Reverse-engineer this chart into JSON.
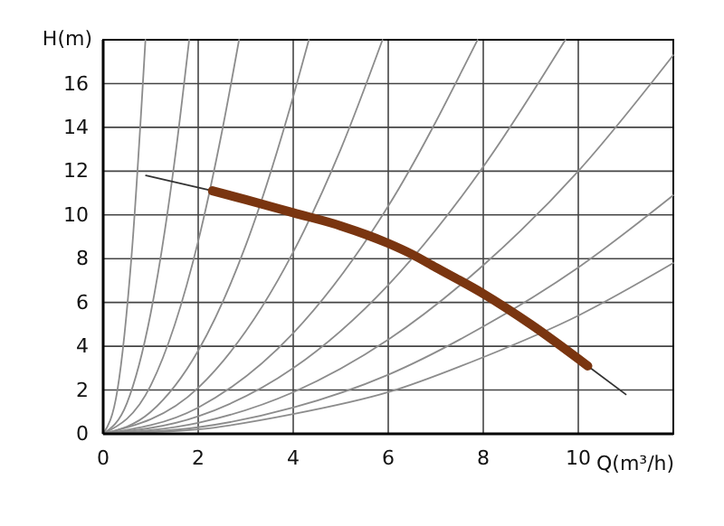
{
  "chart_data": {
    "type": "line",
    "xlabel": "Q(m³/h)",
    "ylabel": "H(m)",
    "xlim": [
      0,
      12
    ],
    "ylim": [
      0,
      18
    ],
    "xticks": [
      0,
      2,
      4,
      6,
      8,
      10
    ],
    "yticks": [
      0,
      2,
      4,
      6,
      8,
      10,
      12,
      14,
      16
    ],
    "grid": true,
    "marker": "none",
    "line_style": "solid",
    "series": [
      {
        "color": "#8c8c8c",
        "x": [
          0,
          0.3,
          0.6,
          0.89
        ],
        "values": [
          0,
          2.0,
          8.2,
          18.0
        ]
      },
      {
        "color": "#8c8c8c",
        "x": [
          0,
          0.5,
          1,
          1.5,
          1.81
        ],
        "values": [
          0,
          1.4,
          5.5,
          12.4,
          18.0
        ]
      },
      {
        "color": "#8c8c8c",
        "x": [
          0,
          1,
          2,
          2.5,
          2.86
        ],
        "values": [
          0,
          2.2,
          8.8,
          13.8,
          18.0
        ]
      },
      {
        "color": "#8c8c8c",
        "x": [
          0,
          1,
          2,
          3,
          4,
          4.33
        ],
        "values": [
          0,
          1.0,
          3.8,
          8.6,
          15.4,
          18.0
        ]
      },
      {
        "color": "#8c8c8c",
        "x": [
          0,
          2,
          4,
          5,
          5.88
        ],
        "values": [
          0,
          2.1,
          8.3,
          13.0,
          18.0
        ]
      },
      {
        "color": "#8c8c8c",
        "x": [
          0,
          2,
          4,
          6,
          7.88
        ],
        "values": [
          0,
          1.2,
          4.6,
          10.4,
          18.0
        ]
      },
      {
        "color": "#8c8c8c",
        "x": [
          0,
          2,
          4,
          6,
          8,
          9.73
        ],
        "values": [
          0,
          0.8,
          3.0,
          6.8,
          12.2,
          18.0
        ]
      },
      {
        "color": "#8c8c8c",
        "x": [
          0,
          2,
          4,
          6,
          8,
          10,
          12
        ],
        "values": [
          0,
          0.5,
          1.9,
          4.3,
          7.7,
          12.0,
          17.3
        ]
      },
      {
        "color": "#8c8c8c",
        "x": [
          0,
          2,
          4,
          6,
          8,
          10,
          12
        ],
        "values": [
          0,
          0.3,
          1.2,
          2.7,
          4.9,
          7.6,
          10.9
        ]
      },
      {
        "color": "#8c8c8c",
        "x": [
          0,
          2,
          4,
          6,
          8,
          10,
          12
        ],
        "values": [
          0,
          0.2,
          0.9,
          1.9,
          3.5,
          5.4,
          7.8
        ]
      },
      {
        "color": "#333333",
        "x": [
          0.9,
          2.3
        ],
        "values": [
          11.8,
          11.1
        ]
      },
      {
        "color": "#333333",
        "x": [
          10.2,
          11.0
        ],
        "values": [
          3.1,
          1.8
        ]
      },
      {
        "color": "#7a3510",
        "x": [
          2.3,
          3,
          4,
          5,
          6,
          6.5,
          7,
          8,
          9,
          10.2
        ],
        "values": [
          11.1,
          10.7,
          10.1,
          9.5,
          8.7,
          8.2,
          7.6,
          6.4,
          5.0,
          3.1
        ]
      }
    ]
  }
}
